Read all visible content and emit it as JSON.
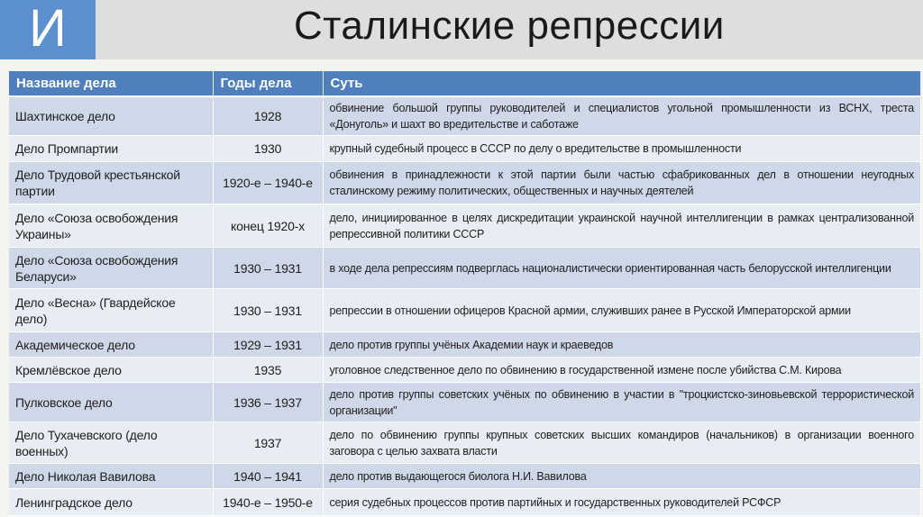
{
  "slide": {
    "logo_letter": "И",
    "title": "Сталинские репрессии",
    "accent_color": "#4f80bd"
  },
  "table": {
    "headers": [
      "Название дела",
      "Годы дела",
      "Суть"
    ],
    "rows": [
      {
        "name": "Шахтинское дело",
        "years": "1928",
        "essence": "обвинение большой группы руководителей и специалистов угольной промышленности из ВСНХ, треста «Донуголь» и шахт во вредительстве и саботаже"
      },
      {
        "name": "Дело Промпартии",
        "years": "1930",
        "essence": "крупный судебный процесс в СССР по делу о вредительстве в промышленности"
      },
      {
        "name": "Дело Трудовой крестьянской партии",
        "years": "1920-е – 1940-е",
        "essence": "обвинения в принадлежности к этой партии были частью сфабрикованных дел в отношении неугодных сталинскому режиму политических, общественных и научных деятелей"
      },
      {
        "name": "Дело «Союза освобождения Украины»",
        "years": "конец 1920-х",
        "essence": "дело, инициированное в целях дискредитации украинской научной интеллигенции в рамках централизованной репрессивной политики СССР"
      },
      {
        "name": "Дело «Союза освобождения Беларуси»",
        "years": "1930 – 1931",
        "essence": "в ходе дела репрессиям подверглась националистически ориентированная часть белорусской интеллигенции"
      },
      {
        "name": "Дело «Весна» (Гвардейское дело)",
        "years": "1930 – 1931",
        "essence": "репрессии в отношении офицеров Красной армии, служивших ранее в Русской Императорской армии"
      },
      {
        "name": "Академическое дело",
        "years": "1929 – 1931",
        "essence": "дело против группы учёных Академии наук и краеведов"
      },
      {
        "name": "Кремлёвское дело",
        "years": "1935",
        "essence": "уголовное следственное дело по обвинению в государственной измене после убийства С.М. Кирова"
      },
      {
        "name": "Пулковское дело",
        "years": "1936 – 1937",
        "essence": "дело против группы советских учёных по обвинению в участии в \"троцкистско-зиновьевской террористической организации\""
      },
      {
        "name": "Дело Тухачевского (дело военных)",
        "years": "1937",
        "essence": "дело по обвинению группы крупных советских высших командиров (начальников) в организации военного заговора с целью захвата власти"
      },
      {
        "name": "Дело Николая Вавилова",
        "years": "1940 – 1941",
        "essence": "дело против выдающегося биолога Н.И. Вавилова"
      },
      {
        "name": "Ленинградское дело",
        "years": "1940-е – 1950-е",
        "essence": "серия судебных процессов против партийных и государственных руководителей РСФСР"
      }
    ]
  }
}
